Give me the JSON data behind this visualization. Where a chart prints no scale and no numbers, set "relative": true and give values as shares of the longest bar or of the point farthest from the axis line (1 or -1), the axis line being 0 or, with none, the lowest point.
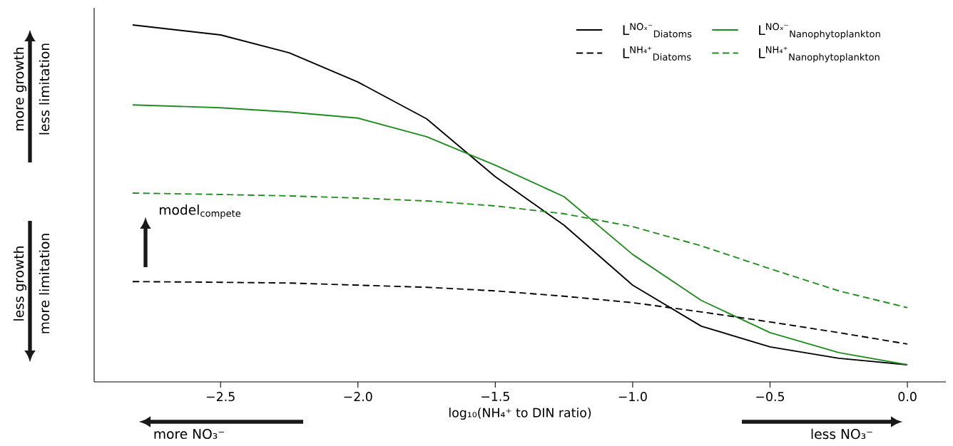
{
  "chart_data": {
    "type": "line",
    "relative": true,
    "xlabel": "log₁₀(NH₄⁺ to DIN ratio)",
    "x": [
      -2.82,
      -2.5,
      -2.25,
      -2.0,
      -1.75,
      -1.5,
      -1.25,
      -1.0,
      -0.75,
      -0.5,
      -0.25,
      0.0
    ],
    "xlim": [
      -2.96,
      0.14
    ],
    "xticks": [
      {
        "value": -2.5,
        "label": "−2.5"
      },
      {
        "value": -2.0,
        "label": "−2.0"
      },
      {
        "value": -1.5,
        "label": "−1.5"
      },
      {
        "value": -1.0,
        "label": "−1.0"
      },
      {
        "value": -0.5,
        "label": "−0.5"
      },
      {
        "value": 0.0,
        "label": "0.0"
      }
    ],
    "series": [
      {
        "name": "L$^{NOₓ⁻}$$_{Diatoms}$",
        "color": "#000000",
        "line_style": "solid",
        "values": [
          1.0,
          0.972,
          0.922,
          0.84,
          0.737,
          0.575,
          0.439,
          0.271,
          0.156,
          0.098,
          0.066,
          0.048
        ]
      },
      {
        "name": "L$^{NOₓ⁻}$$_{Nanophytoplankton}$",
        "color": "#1f8c1f",
        "line_style": "solid",
        "values": [
          0.776,
          0.768,
          0.756,
          0.739,
          0.687,
          0.607,
          0.519,
          0.357,
          0.228,
          0.138,
          0.082,
          0.048
        ]
      },
      {
        "name": "L$^{NH₄⁺}$$_{Diatoms}$",
        "color": "#000000",
        "line_style": "dashed",
        "values": [
          0.281,
          0.279,
          0.277,
          0.271,
          0.265,
          0.255,
          0.24,
          0.222,
          0.196,
          0.168,
          0.138,
          0.106
        ]
      },
      {
        "name": "L$^{NH₄⁺}$$_{Nanophytoplankton}$",
        "color": "#1f8c1f",
        "line_style": "dashed",
        "values": [
          0.529,
          0.525,
          0.521,
          0.515,
          0.507,
          0.493,
          0.471,
          0.435,
          0.381,
          0.317,
          0.255,
          0.208
        ]
      }
    ],
    "legend": "top right",
    "grid": false,
    "marker": "none",
    "annotations": [
      "more growth",
      "less limitation",
      "less growth",
      "more limitation",
      "model$_{compete}$",
      "more NO₃⁻",
      "less NO₃⁻"
    ]
  }
}
